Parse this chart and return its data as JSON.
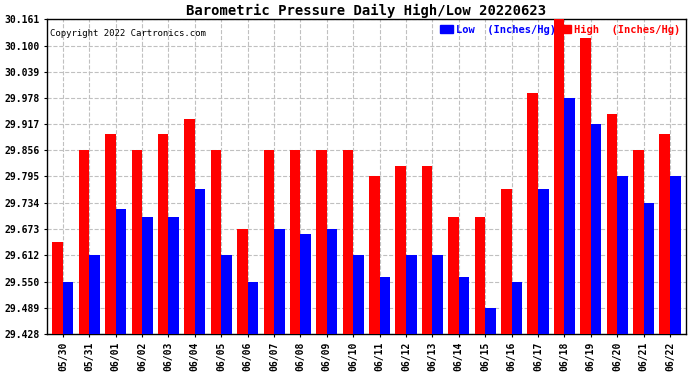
{
  "title": "Barometric Pressure Daily High/Low 20220623",
  "copyright": "Copyright 2022 Cartronics.com",
  "legend_low": "Low  (Inches/Hg)",
  "legend_high": "High  (Inches/Hg)",
  "low_color": "#0000ff",
  "high_color": "#ff0000",
  "bg_color": "#ffffff",
  "grid_color": "#c0c0c0",
  "ylim_min": 29.428,
  "ylim_max": 30.161,
  "yticks": [
    29.428,
    29.489,
    29.55,
    29.612,
    29.673,
    29.734,
    29.795,
    29.856,
    29.917,
    29.978,
    30.039,
    30.1,
    30.161
  ],
  "dates": [
    "05/30",
    "05/31",
    "06/01",
    "06/02",
    "06/03",
    "06/04",
    "06/05",
    "06/06",
    "06/07",
    "06/08",
    "06/09",
    "06/10",
    "06/11",
    "06/12",
    "06/13",
    "06/14",
    "06/15",
    "06/16",
    "06/17",
    "06/18",
    "06/19",
    "06/20",
    "06/21",
    "06/22"
  ],
  "high_values": [
    29.643,
    29.856,
    29.895,
    29.856,
    29.895,
    29.93,
    29.856,
    29.673,
    29.856,
    29.856,
    29.856,
    29.856,
    29.795,
    29.82,
    29.82,
    29.7,
    29.7,
    29.765,
    29.99,
    30.161,
    30.117,
    29.94,
    29.856,
    29.895
  ],
  "low_values": [
    29.55,
    29.612,
    29.72,
    29.7,
    29.7,
    29.765,
    29.612,
    29.55,
    29.673,
    29.66,
    29.673,
    29.612,
    29.56,
    29.612,
    29.612,
    29.56,
    29.489,
    29.55,
    29.765,
    29.978,
    29.917,
    29.795,
    29.734,
    29.795
  ]
}
